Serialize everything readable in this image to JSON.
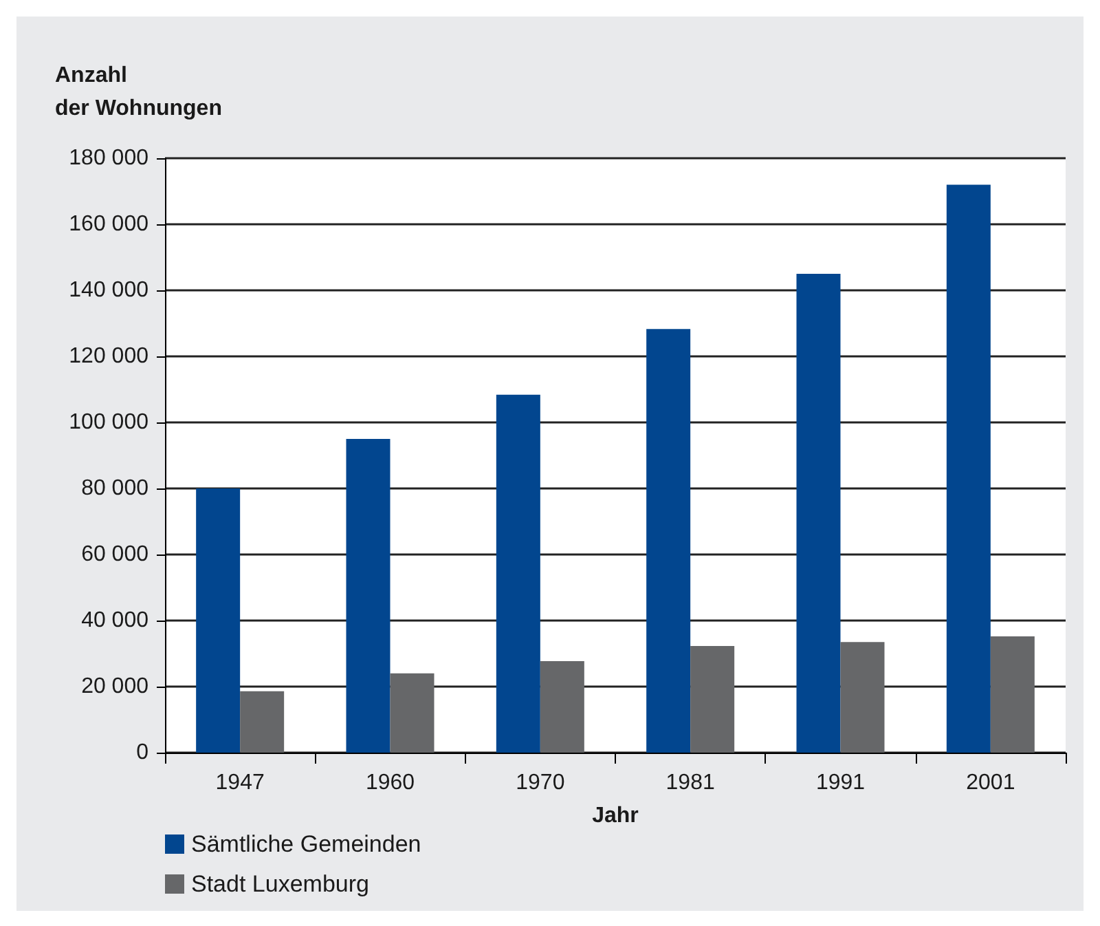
{
  "chart_data": {
    "type": "bar",
    "ylabel": "Anzahl\nder Wohnungen",
    "xlabel": "Jahr",
    "categories": [
      "1947",
      "1960",
      "1970",
      "1981",
      "1991",
      "2001"
    ],
    "series": [
      {
        "name": "Sämtliche Gemeinden",
        "color": "#02468f",
        "values": [
          80000,
          95000,
          108400,
          128300,
          145000,
          172000
        ]
      },
      {
        "name": "Stadt Luxemburg",
        "color": "#666769",
        "values": [
          18600,
          24000,
          27700,
          32300,
          33500,
          35200
        ]
      }
    ],
    "ylim": [
      0,
      180000
    ],
    "yticks": [
      {
        "value": 0,
        "label": "0"
      },
      {
        "value": 20000,
        "label": "20 000"
      },
      {
        "value": 40000,
        "label": "40 000"
      },
      {
        "value": 60000,
        "label": "60 000"
      },
      {
        "value": 80000,
        "label": "80 000"
      },
      {
        "value": 100000,
        "label": "100 000"
      },
      {
        "value": 120000,
        "label": "120 000"
      },
      {
        "value": 140000,
        "label": "140 000"
      },
      {
        "value": 160000,
        "label": "160 000"
      },
      {
        "value": 180000,
        "label": "180 000"
      }
    ],
    "grid": "y",
    "legend": "bottom left"
  }
}
